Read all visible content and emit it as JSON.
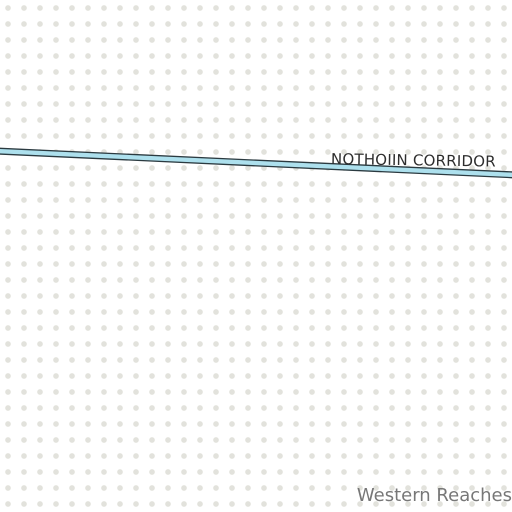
{
  "map": {
    "road": {
      "name": "NOTHOIIN CORRIDOR",
      "fill_color": "#ade0ed",
      "casing_color": "#2b3a40"
    },
    "region": {
      "name": "Western Reaches"
    },
    "colors": {
      "background": "#ffffff",
      "dot": "#e2e2dc",
      "label_text": "#2d2d2d",
      "region_text": "#777777"
    }
  }
}
